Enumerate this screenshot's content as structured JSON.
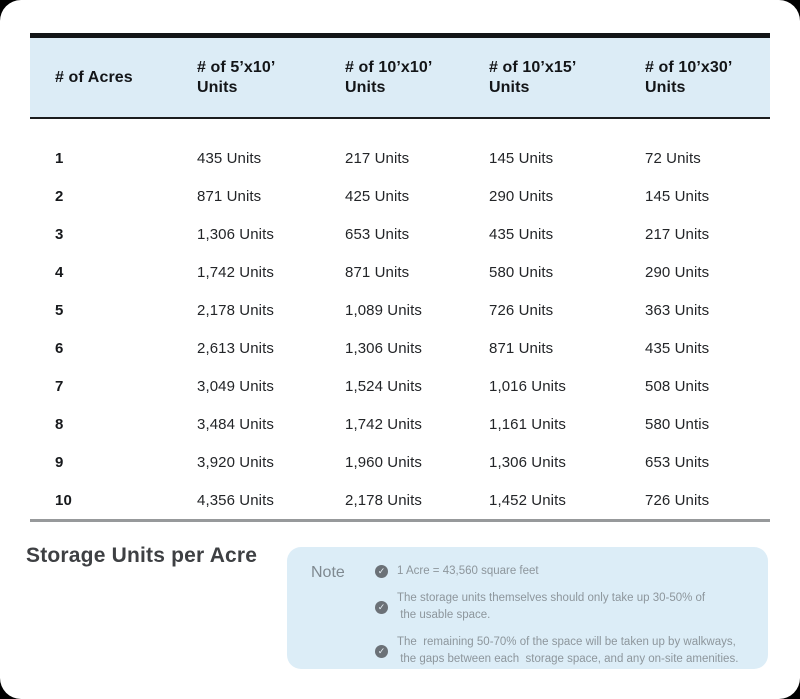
{
  "table": {
    "columns": [
      "# of Acres",
      "# of 5’x10’\nUnits",
      "# of 10’x10’\nUnits",
      "# of 10’x15’\nUnits",
      "# of 10’x30’\nUnits"
    ],
    "rows": [
      {
        "acres": "1",
        "cells": [
          "435 Units",
          "217 Units",
          "145 Units",
          "72 Units"
        ]
      },
      {
        "acres": "2",
        "cells": [
          "871 Units",
          "425 Units",
          "290 Units",
          "145 Units"
        ]
      },
      {
        "acres": "3",
        "cells": [
          "1,306 Units",
          "653 Units",
          "435 Units",
          "217 Units"
        ]
      },
      {
        "acres": "4",
        "cells": [
          "1,742 Units",
          "871 Units",
          "580 Units",
          "290 Units"
        ]
      },
      {
        "acres": "5",
        "cells": [
          "2,178 Units",
          "1,089 Units",
          "726 Units",
          "363 Units"
        ]
      },
      {
        "acres": "6",
        "cells": [
          "2,613 Units",
          "1,306 Units",
          "871 Units",
          "435 Units"
        ]
      },
      {
        "acres": "7",
        "cells": [
          "3,049 Units",
          "1,524 Units",
          "1,016 Units",
          "508 Units"
        ]
      },
      {
        "acres": "8",
        "cells": [
          "3,484 Units",
          "1,742 Units",
          "1,161 Units",
          "580 Untis"
        ]
      },
      {
        "acres": "9",
        "cells": [
          "3,920 Units",
          "1,960 Units",
          "1,306 Units",
          "653 Units"
        ]
      },
      {
        "acres": "10",
        "cells": [
          "4,356 Units",
          "2,178 Units",
          "1,452 Units",
          "726 Units"
        ]
      }
    ]
  },
  "footer": {
    "title": "Storage Units per Acre",
    "note": {
      "label": "Note",
      "items": [
        "1 Acre = 43,560 square feet",
        "The storage units themselves should only take up 30-50% of\n the usable space.",
        "The  remaining 50-70% of the space will be taken up by walkways,\n the gaps between each  storage space, and any on-site amenities."
      ]
    }
  },
  "icons": {
    "check": "✓"
  },
  "colors": {
    "header_bg": "#dcecf6",
    "note_bg": "#dcedf7",
    "table_top_border": "#131517",
    "table_bottom_border": "#97999b",
    "check_icon_bg": "#6b7177",
    "body_text": "#232528",
    "note_text": "#8d969c"
  },
  "chart_data": {
    "type": "table",
    "title": "Storage Units per Acre",
    "columns": [
      "# of Acres",
      "# of 5’x10’ Units",
      "# of 10’x10’ Units",
      "# of 10’x15’ Units",
      "# of 10’x30’ Units"
    ],
    "acres": [
      1,
      2,
      3,
      4,
      5,
      6,
      7,
      8,
      9,
      10
    ],
    "series": [
      {
        "name": "# of 5’x10’ Units",
        "values": [
          435,
          871,
          1306,
          1742,
          2178,
          2613,
          3049,
          3484,
          3920,
          4356
        ]
      },
      {
        "name": "# of 10’x10’ Units",
        "values": [
          217,
          425,
          653,
          871,
          1089,
          1306,
          1524,
          1742,
          1960,
          2178
        ]
      },
      {
        "name": "# of 10’x15’ Units",
        "values": [
          145,
          290,
          435,
          580,
          726,
          871,
          1016,
          1161,
          1306,
          1452
        ]
      },
      {
        "name": "# of 10’x30’ Units",
        "values": [
          72,
          145,
          217,
          290,
          363,
          435,
          508,
          580,
          653,
          726
        ]
      }
    ],
    "notes": [
      "1 Acre = 43,560 square feet",
      "The storage units themselves should only take up 30-50% of the usable space.",
      "The remaining 50-70% of the space will be taken up by walkways, the gaps between each storage space, and any on-site amenities."
    ]
  }
}
